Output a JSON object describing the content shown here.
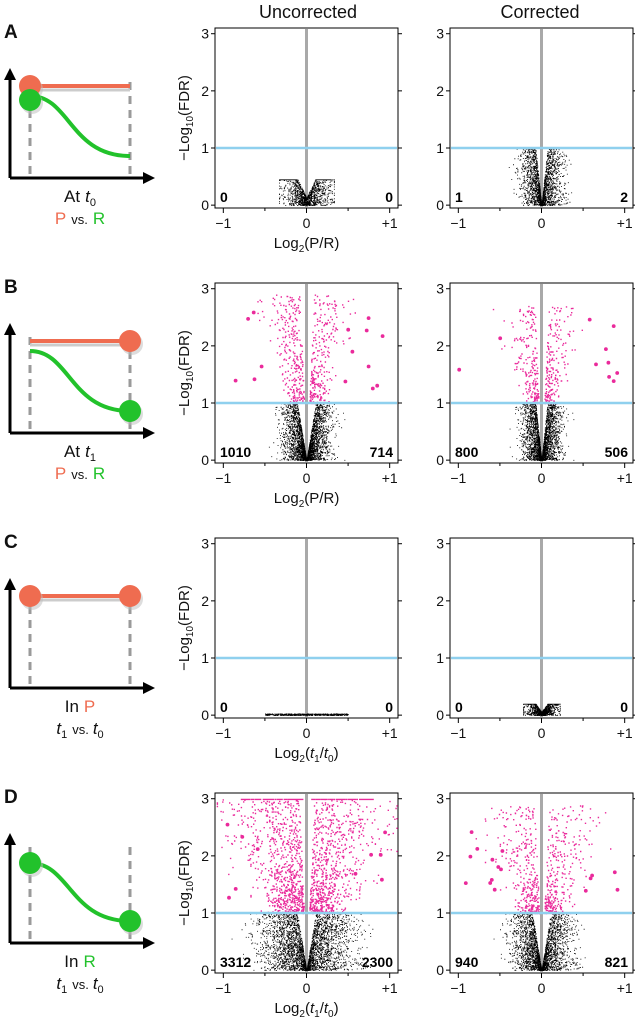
{
  "column_headers": {
    "uncorrected": "Uncorrected",
    "corrected": "Corrected"
  },
  "colors": {
    "P": "#ef6c50",
    "R": "#22c22b",
    "sig": "#ea2a9b",
    "nonsig": "#000000",
    "threshold": "#8fd0ee",
    "zero": "#a9a9a9",
    "dashed": "#9a9a9a"
  },
  "panels": [
    {
      "letter": "A",
      "schematic": {
        "variant": "A",
        "line1": "At",
        "time_var": "t",
        "time_sub": "0",
        "line2_type": "pr",
        "P": "P",
        "vs": "vs.",
        "R": "R"
      },
      "xlabel": {
        "base": "Log",
        "sub": "2",
        "open": "(",
        "num_var": "",
        "num_sub": "",
        "num_text": "P",
        "slash": "/",
        "den_var": "",
        "den_sub": "",
        "den_text": "R",
        "close": ")"
      },
      "ylabel": {
        "minus": "−",
        "log": "Log",
        "sub": "10",
        "arg": "(FDR)"
      },
      "yticks": [
        "0",
        "1",
        "2",
        "3"
      ],
      "xticks": [
        "−1",
        "0",
        "+1"
      ],
      "uncorrected": {
        "left": "0",
        "right": "0",
        "cloud": {
          "shape": "flat",
          "w": 0.33,
          "h": 0.45,
          "sig": 0,
          "n": 1300,
          "dots": 0
        }
      },
      "corrected": {
        "left": "1",
        "right": "2",
        "cloud": {
          "shape": "vnarrow",
          "w": 0.33,
          "h": 0.8,
          "sig": 0,
          "n": 2000,
          "dots": 0
        }
      }
    },
    {
      "letter": "B",
      "schematic": {
        "variant": "B",
        "line1": "At",
        "time_var": "t",
        "time_sub": "1",
        "line2_type": "pr",
        "P": "P",
        "vs": "vs.",
        "R": "R"
      },
      "xlabel": {
        "base": "Log",
        "sub": "2",
        "open": "(",
        "num_var": "",
        "num_sub": "",
        "num_text": "P",
        "slash": "/",
        "den_var": "",
        "den_sub": "",
        "den_text": "R",
        "close": ")"
      },
      "ylabel": {
        "minus": "−",
        "log": "Log",
        "sub": "10",
        "arg": "(FDR)"
      },
      "yticks": [
        "0",
        "1",
        "2",
        "3"
      ],
      "xticks": [
        "−1",
        "0",
        "+1"
      ],
      "uncorrected": {
        "left": "1010",
        "right": "714",
        "cloud": {
          "shape": "v",
          "w": 0.38,
          "h": 2.9,
          "sig": 550,
          "n": 3000,
          "dots": 14
        }
      },
      "corrected": {
        "left": "800",
        "right": "506",
        "cloud": {
          "shape": "vnarrow",
          "w": 0.32,
          "h": 2.7,
          "sig": 420,
          "n": 2600,
          "dots": 10
        }
      }
    },
    {
      "letter": "C",
      "schematic": {
        "variant": "C",
        "line1": "In",
        "time_var": "",
        "time_sub": "",
        "line2_type": "t",
        "P": "P",
        "vs": "vs.",
        "R": "R",
        "t_var": "t",
        "t1_sub": "1",
        "t0_sub": "0"
      },
      "xlabel": {
        "base": "Log",
        "sub": "2",
        "open": "(",
        "num_var": "t",
        "num_sub": "1",
        "num_text": "",
        "slash": "/",
        "den_var": "t",
        "den_sub": "0",
        "den_text": "",
        "close": ")"
      },
      "ylabel": {
        "minus": "−",
        "log": "Log",
        "sub": "10",
        "arg": "(FDR)"
      },
      "yticks": [
        "0",
        "1",
        "2",
        "3"
      ],
      "xticks": [
        "−1",
        "0",
        "+1"
      ],
      "uncorrected": {
        "left": "0",
        "right": "0",
        "cloud": {
          "shape": "line",
          "w": 0.5,
          "h": 0.03,
          "sig": 0,
          "n": 500,
          "dots": 0
        }
      },
      "corrected": {
        "left": "0",
        "right": "0",
        "cloud": {
          "shape": "flat",
          "w": 0.22,
          "h": 0.2,
          "sig": 0,
          "n": 1000,
          "dots": 0
        }
      }
    },
    {
      "letter": "D",
      "schematic": {
        "variant": "D",
        "line1": "In",
        "time_var": "",
        "time_sub": "",
        "line2_type": "t",
        "P": "P",
        "vs": "vs.",
        "R": "R",
        "t_var": "t",
        "t1_sub": "1",
        "t0_sub": "0"
      },
      "xlabel": {
        "base": "Log",
        "sub": "2",
        "open": "(",
        "num_var": "t",
        "num_sub": "1",
        "num_text": "",
        "slash": "/",
        "den_var": "t",
        "den_sub": "0",
        "den_text": "",
        "close": ")"
      },
      "ylabel": {
        "minus": "−",
        "log": "Log",
        "sub": "10",
        "arg": "(FDR)"
      },
      "yticks": [
        "0",
        "1",
        "2",
        "3"
      ],
      "xticks": [
        "−1",
        "0",
        "+1"
      ],
      "uncorrected": {
        "left": "3312",
        "right": "2300",
        "cloud": {
          "shape": "vwide",
          "w": 0.75,
          "h": 3.0,
          "sig": 1800,
          "n": 3200,
          "dots": 10,
          "ceiling": true
        }
      },
      "corrected": {
        "left": "940",
        "right": "821",
        "cloud": {
          "shape": "v",
          "w": 0.48,
          "h": 2.9,
          "sig": 650,
          "n": 2600,
          "dots": 16
        }
      }
    }
  ],
  "chart_data": [
    {
      "type": "scatter",
      "panel": "A",
      "title": "Uncorrected",
      "xlabel": "Log2(P/R)",
      "ylabel": "−Log10(FDR)",
      "xlim": [
        -1.1,
        1.1
      ],
      "ylim": [
        0,
        3.1
      ],
      "threshold_y": 1,
      "count_left": 0,
      "count_right": 0
    },
    {
      "type": "scatter",
      "panel": "A",
      "title": "Corrected",
      "xlabel": "Log2(P/R)",
      "ylabel": "−Log10(FDR)",
      "xlim": [
        -1.1,
        1.1
      ],
      "ylim": [
        0,
        3.1
      ],
      "threshold_y": 1,
      "count_left": 1,
      "count_right": 2
    },
    {
      "type": "scatter",
      "panel": "B",
      "title": "Uncorrected",
      "xlabel": "Log2(P/R)",
      "ylabel": "−Log10(FDR)",
      "xlim": [
        -1.1,
        1.1
      ],
      "ylim": [
        0,
        3.1
      ],
      "threshold_y": 1,
      "count_left": 1010,
      "count_right": 714
    },
    {
      "type": "scatter",
      "panel": "B",
      "title": "Corrected",
      "xlabel": "Log2(P/R)",
      "ylabel": "−Log10(FDR)",
      "xlim": [
        -1.1,
        1.1
      ],
      "ylim": [
        0,
        3.1
      ],
      "threshold_y": 1,
      "count_left": 800,
      "count_right": 506
    },
    {
      "type": "scatter",
      "panel": "C",
      "title": "Uncorrected",
      "xlabel": "Log2(t1/t0)",
      "ylabel": "−Log10(FDR)",
      "xlim": [
        -1.1,
        1.1
      ],
      "ylim": [
        0,
        3.1
      ],
      "threshold_y": 1,
      "count_left": 0,
      "count_right": 0
    },
    {
      "type": "scatter",
      "panel": "C",
      "title": "Corrected",
      "xlabel": "Log2(t1/t0)",
      "ylabel": "−Log10(FDR)",
      "xlim": [
        -1.1,
        1.1
      ],
      "ylim": [
        0,
        3.1
      ],
      "threshold_y": 1,
      "count_left": 0,
      "count_right": 0
    },
    {
      "type": "scatter",
      "panel": "D",
      "title": "Uncorrected",
      "xlabel": "Log2(t1/t0)",
      "ylabel": "−Log10(FDR)",
      "xlim": [
        -1.1,
        1.1
      ],
      "ylim": [
        0,
        3.1
      ],
      "threshold_y": 1,
      "count_left": 3312,
      "count_right": 2300
    },
    {
      "type": "scatter",
      "panel": "D",
      "title": "Corrected",
      "xlabel": "Log2(t1/t0)",
      "ylabel": "−Log10(FDR)",
      "xlim": [
        -1.1,
        1.1
      ],
      "ylim": [
        0,
        3.1
      ],
      "threshold_y": 1,
      "count_left": 940,
      "count_right": 821
    }
  ]
}
